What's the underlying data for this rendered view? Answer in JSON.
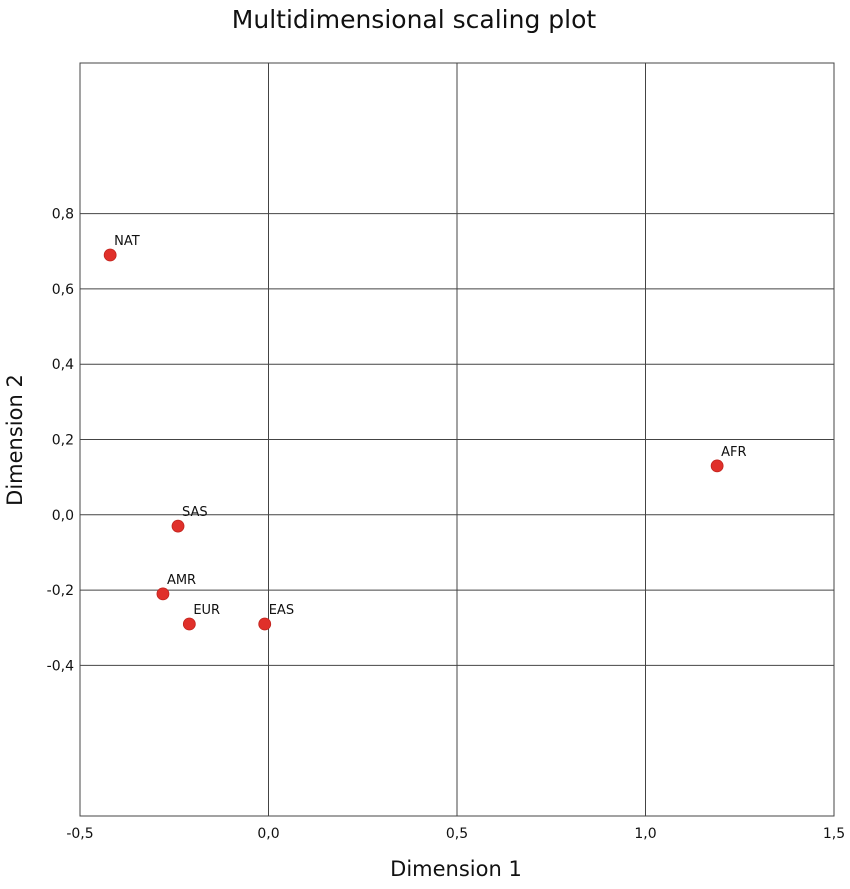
{
  "chart_data": {
    "type": "scatter",
    "title": "Multidimensional scaling plot",
    "xlabel": "Dimension 1",
    "ylabel": "Dimension 2",
    "xlim": [
      -0.5,
      1.5
    ],
    "ylim": [
      -0.8,
      1.2
    ],
    "x_ticks": [
      -0.5,
      0.0,
      0.5,
      1.0,
      1.5
    ],
    "x_tick_labels": [
      "-0,5",
      "0,0",
      "0,5",
      "1,0",
      "1,5"
    ],
    "y_ticks": [
      0.8,
      0.6,
      0.4,
      0.2,
      0.0,
      -0.2,
      -0.4
    ],
    "y_tick_labels": [
      "0,8",
      "0,6",
      "0,4",
      "0,2",
      "0,0",
      "-0,2",
      "-0,4"
    ],
    "grid": true,
    "point_color": "#e0302a",
    "points": [
      {
        "label": "NAT",
        "x": -0.42,
        "y": 0.69
      },
      {
        "label": "AFR",
        "x": 1.19,
        "y": 0.13
      },
      {
        "label": "SAS",
        "x": -0.24,
        "y": -0.03
      },
      {
        "label": "AMR",
        "x": -0.28,
        "y": -0.21
      },
      {
        "label": "EUR",
        "x": -0.21,
        "y": -0.29
      },
      {
        "label": "EAS",
        "x": -0.01,
        "y": -0.29
      }
    ]
  }
}
